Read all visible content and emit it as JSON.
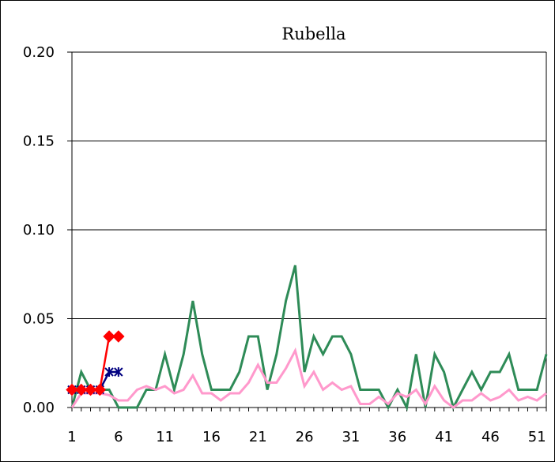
{
  "chart_data": {
    "type": "line",
    "title": "Rubella",
    "xlabel": "",
    "ylabel": "",
    "xlim": [
      1,
      52
    ],
    "ylim": [
      0,
      0.2
    ],
    "x_ticks": [
      "1",
      "6",
      "11",
      "16",
      "21",
      "26",
      "31",
      "36",
      "41",
      "46",
      "51"
    ],
    "y_ticks": [
      "0.00",
      "0.05",
      "0.10",
      "0.15",
      "0.20"
    ],
    "grid": "horizontal",
    "colors": {
      "green": "#2e8b57",
      "pink": "#ff99cc",
      "red": "#ff0000",
      "navy": "#000080"
    },
    "series": [
      {
        "marker": "none",
        "color": "#2e8b57",
        "x": [
          1,
          2,
          3,
          4,
          5,
          6,
          7,
          8,
          9,
          10,
          11,
          12,
          13,
          14,
          15,
          16,
          17,
          18,
          19,
          20,
          21,
          22,
          23,
          24,
          25,
          26,
          27,
          28,
          29,
          30,
          31,
          32,
          33,
          34,
          35,
          36,
          37,
          38,
          39,
          40,
          41,
          42,
          43,
          44,
          45,
          46,
          47,
          48,
          49,
          50,
          51,
          52
        ],
        "values": [
          0.0,
          0.02,
          0.01,
          0.01,
          0.01,
          0.0,
          0.0,
          0.0,
          0.01,
          0.01,
          0.03,
          0.01,
          0.03,
          0.06,
          0.03,
          0.01,
          0.01,
          0.01,
          0.02,
          0.04,
          0.04,
          0.01,
          0.03,
          0.06,
          0.08,
          0.02,
          0.04,
          0.03,
          0.04,
          0.04,
          0.03,
          0.01,
          0.01,
          0.01,
          0.0,
          0.01,
          0.0,
          0.03,
          0.0,
          0.03,
          0.02,
          0.0,
          0.01,
          0.02,
          0.01,
          0.02,
          0.02,
          0.03,
          0.01,
          0.01,
          0.01,
          0.03
        ]
      },
      {
        "marker": "none",
        "color": "#ff99cc",
        "x": [
          1,
          2,
          3,
          4,
          5,
          6,
          7,
          8,
          9,
          10,
          11,
          12,
          13,
          14,
          15,
          16,
          17,
          18,
          19,
          20,
          21,
          22,
          23,
          24,
          25,
          26,
          27,
          28,
          29,
          30,
          31,
          32,
          33,
          34,
          35,
          36,
          37,
          38,
          39,
          40,
          41,
          42,
          43,
          44,
          45,
          46,
          47,
          48,
          49,
          50,
          51,
          52
        ],
        "values": [
          0.0,
          0.008,
          0.008,
          0.008,
          0.007,
          0.004,
          0.004,
          0.01,
          0.012,
          0.01,
          0.012,
          0.008,
          0.01,
          0.018,
          0.008,
          0.008,
          0.004,
          0.008,
          0.008,
          0.014,
          0.024,
          0.014,
          0.014,
          0.022,
          0.032,
          0.012,
          0.02,
          0.01,
          0.014,
          0.01,
          0.012,
          0.002,
          0.002,
          0.006,
          0.002,
          0.008,
          0.006,
          0.01,
          0.002,
          0.012,
          0.004,
          0.0,
          0.004,
          0.004,
          0.008,
          0.004,
          0.006,
          0.01,
          0.004,
          0.006,
          0.004,
          0.008
        ]
      },
      {
        "marker": "x",
        "color": "#000080",
        "x": [
          1,
          2,
          3,
          4,
          5,
          6
        ],
        "values": [
          0.01,
          0.01,
          0.01,
          0.01,
          0.02,
          0.02
        ]
      },
      {
        "marker": "diamond",
        "color": "#ff0000",
        "x": [
          1,
          2,
          3,
          4,
          5,
          6
        ],
        "values": [
          0.01,
          0.01,
          0.01,
          0.01,
          0.04,
          0.04
        ]
      }
    ]
  }
}
